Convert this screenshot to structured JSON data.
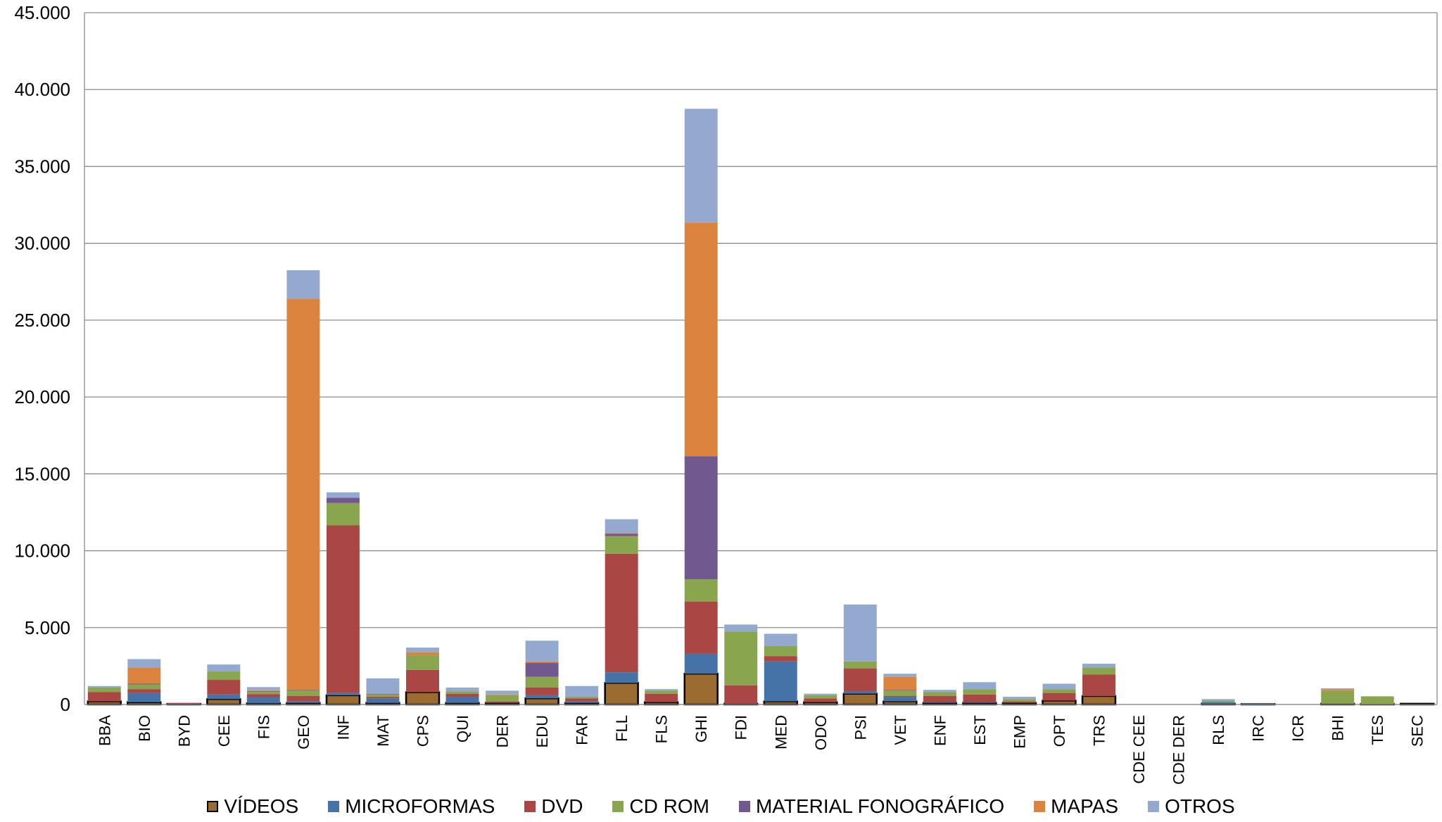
{
  "chart_data": {
    "type": "bar",
    "stacked": true,
    "title": "",
    "xlabel": "",
    "ylabel": "",
    "ylim": [
      0,
      45000
    ],
    "yticks": [
      0,
      5000,
      10000,
      15000,
      20000,
      25000,
      30000,
      35000,
      40000,
      45000
    ],
    "ytick_labels": [
      "0",
      "5.000",
      "10.000",
      "15.000",
      "20.000",
      "25.000",
      "30.000",
      "35.000",
      "40.000",
      "45.000"
    ],
    "grid": true,
    "legend_position": "bottom",
    "categories": [
      "BBA",
      "BIO",
      "BYD",
      "CEE",
      "FIS",
      "GEO",
      "INF",
      "MAT",
      "CPS",
      "QUI",
      "DER",
      "EDU",
      "FAR",
      "FLL",
      "FLS",
      "GHI",
      "FDI",
      "MED",
      "ODO",
      "PSI",
      "VET",
      "ENF",
      "EST",
      "EMP",
      "OPT",
      "TRS",
      "CDE CEE",
      "CDE DER",
      "RLS",
      "IRC",
      "ICR",
      "BHI",
      "TES",
      "SEC"
    ],
    "series": [
      {
        "name": "VÍDEOS",
        "color": "#9C6B32",
        "outlined": true,
        "values": [
          200,
          150,
          40,
          350,
          80,
          100,
          600,
          100,
          800,
          100,
          100,
          400,
          100,
          1400,
          150,
          2000,
          50,
          200,
          150,
          700,
          200,
          100,
          100,
          100,
          250,
          550,
          0,
          0,
          50,
          30,
          0,
          50,
          30,
          50
        ]
      },
      {
        "name": "MICROFORMAS",
        "color": "#4572A7",
        "values": [
          0,
          600,
          0,
          300,
          400,
          100,
          150,
          300,
          0,
          400,
          0,
          200,
          100,
          700,
          0,
          1300,
          0,
          2600,
          0,
          150,
          300,
          50,
          50,
          0,
          0,
          0,
          0,
          0,
          100,
          50,
          0,
          0,
          0,
          0
        ]
      },
      {
        "name": "DVD",
        "color": "#AA4643",
        "values": [
          600,
          250,
          60,
          950,
          200,
          350,
          10900,
          100,
          1450,
          200,
          100,
          500,
          200,
          7700,
          550,
          3400,
          1200,
          350,
          250,
          1500,
          50,
          400,
          500,
          100,
          500,
          1400,
          0,
          0,
          0,
          0,
          0,
          0,
          0,
          0
        ]
      },
      {
        "name": "CD ROM",
        "color": "#89A54E",
        "values": [
          300,
          300,
          0,
          550,
          150,
          350,
          1450,
          150,
          950,
          150,
          400,
          700,
          100,
          1150,
          200,
          1450,
          3500,
          650,
          200,
          450,
          350,
          250,
          350,
          150,
          250,
          450,
          0,
          0,
          100,
          0,
          0,
          850,
          500,
          0
        ]
      },
      {
        "name": "MATERIAL FONOGRÁFICO",
        "color": "#71588F",
        "values": [
          0,
          50,
          0,
          0,
          50,
          50,
          350,
          50,
          0,
          0,
          0,
          900,
          0,
          150,
          0,
          8000,
          0,
          0,
          0,
          0,
          50,
          0,
          0,
          0,
          0,
          0,
          0,
          0,
          0,
          0,
          0,
          0,
          0,
          0
        ]
      },
      {
        "name": "MAPAS",
        "color": "#DB843D",
        "values": [
          0,
          1050,
          0,
          0,
          50,
          25450,
          0,
          0,
          200,
          0,
          50,
          100,
          0,
          50,
          0,
          15200,
          0,
          0,
          0,
          0,
          850,
          0,
          0,
          0,
          0,
          0,
          0,
          0,
          0,
          0,
          0,
          100,
          0,
          0
        ]
      },
      {
        "name": "OTROS",
        "color": "#93A9CF",
        "values": [
          100,
          550,
          0,
          450,
          200,
          1850,
          350,
          1000,
          300,
          250,
          250,
          1350,
          700,
          900,
          100,
          7400,
          450,
          800,
          100,
          3700,
          200,
          150,
          450,
          150,
          350,
          250,
          0,
          0,
          100,
          0,
          0,
          50,
          0,
          0
        ]
      }
    ]
  }
}
